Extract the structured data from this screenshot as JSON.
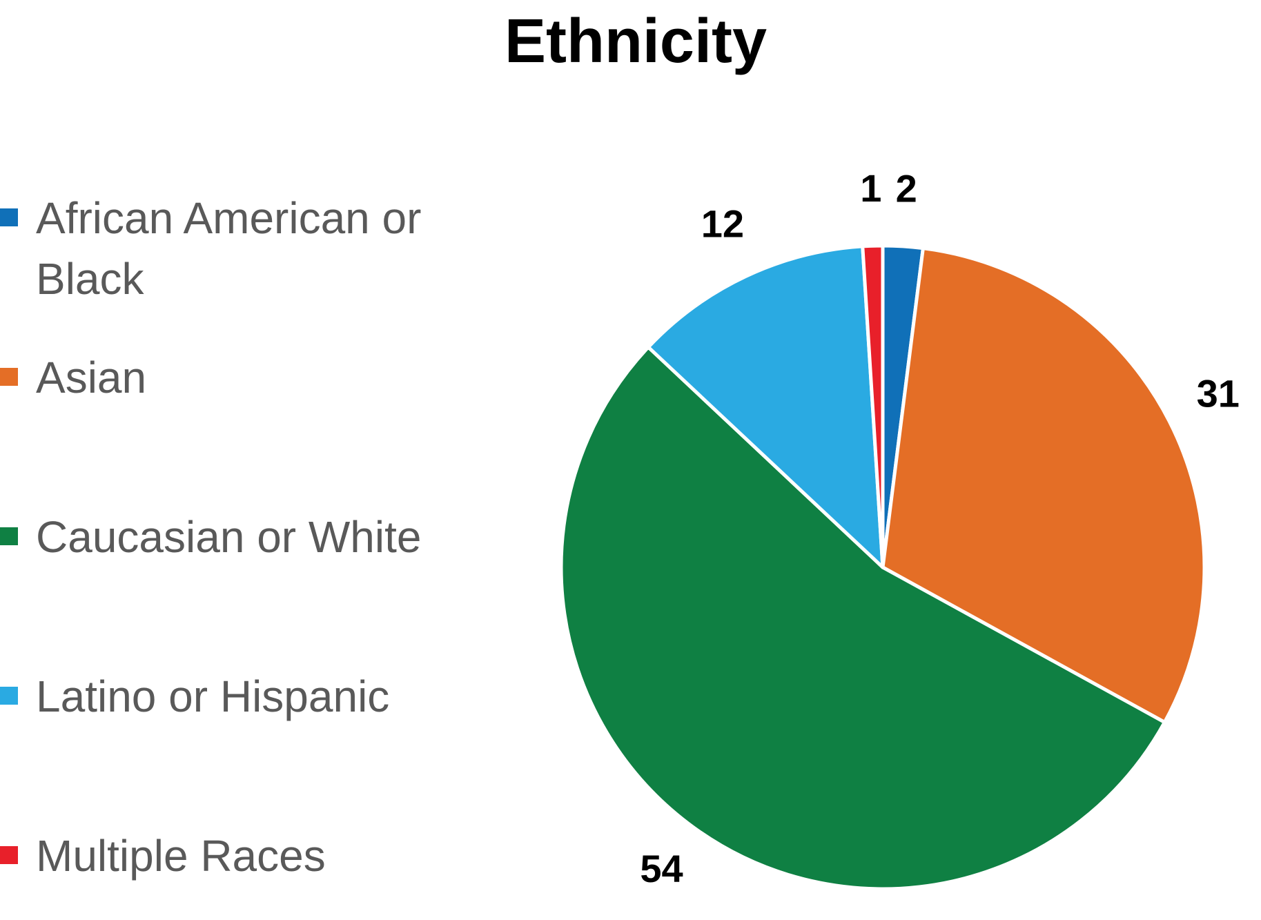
{
  "chart_data": {
    "type": "pie",
    "title": "Ethnicity",
    "categories": [
      "African American or Black",
      "Asian",
      "Caucasian or White",
      "Latino or Hispanic",
      "Multiple Races"
    ],
    "values": [
      2,
      31,
      54,
      12,
      1
    ],
    "colors": [
      "#1070b8",
      "#e46e26",
      "#0f8043",
      "#2aaae2",
      "#e8202a"
    ],
    "legend": "left"
  }
}
